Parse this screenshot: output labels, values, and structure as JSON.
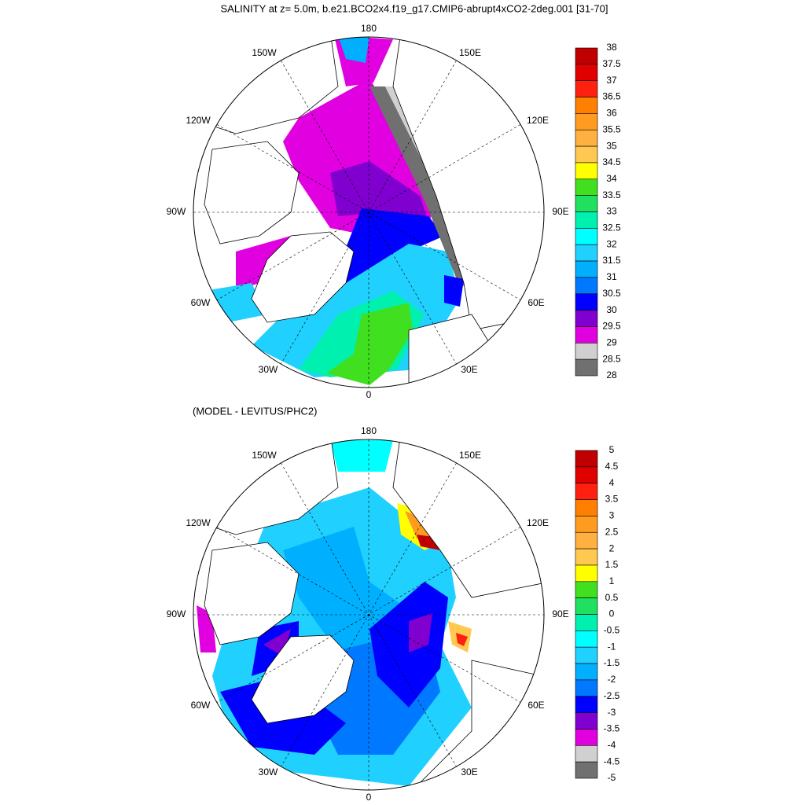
{
  "panels": [
    {
      "title": "SALINITY at z=   5.0m, b.e21.BCO2x4.f19_g17.CMIP6-abrupt4xCO2-2deg.001 [31-70]",
      "lon_labels": [
        "180",
        "150W",
        "150E",
        "120W",
        "120E",
        "90W",
        "90E",
        "60W",
        "60E",
        "30W",
        "30E",
        "0"
      ],
      "colorbar": {
        "levels": [
          38,
          37.5,
          37,
          36.5,
          36,
          35.5,
          35,
          34.5,
          34,
          33.5,
          33,
          32.5,
          32,
          31.5,
          31,
          30.5,
          30,
          29.5,
          29,
          28.5,
          28
        ],
        "colors": [
          "#c00000",
          "#e00000",
          "#ff2010",
          "#ff8000",
          "#ff9c20",
          "#ffb040",
          "#ffc850",
          "#ffff00",
          "#40e020",
          "#20e060",
          "#00f0b0",
          "#00ffff",
          "#20d0ff",
          "#00b0ff",
          "#0078ff",
          "#0000ff",
          "#8000d0",
          "#e000e0",
          "#d0d0d0",
          "#707070"
        ]
      }
    },
    {
      "title": "(MODEL - LEVITUS/PHC2)",
      "lon_labels": [
        "180",
        "150W",
        "150E",
        "120W",
        "120E",
        "90W",
        "90E",
        "60W",
        "60E",
        "30W",
        "30E",
        "0"
      ],
      "colorbar": {
        "levels": [
          5,
          4.5,
          4,
          3.5,
          3,
          2.5,
          2,
          1.5,
          1,
          0.5,
          0,
          -0.5,
          -1,
          -1.5,
          -2,
          -2.5,
          -3,
          -3.5,
          -4,
          -4.5,
          -5
        ],
        "colors": [
          "#c00000",
          "#e00000",
          "#ff2010",
          "#ff8000",
          "#ff9c20",
          "#ffb040",
          "#ffc850",
          "#ffff00",
          "#40e020",
          "#20e060",
          "#00f0b0",
          "#00ffff",
          "#20d0ff",
          "#00b0ff",
          "#0078ff",
          "#0000ff",
          "#8000d0",
          "#e000e0",
          "#d0d0d0",
          "#707070"
        ]
      }
    }
  ]
}
